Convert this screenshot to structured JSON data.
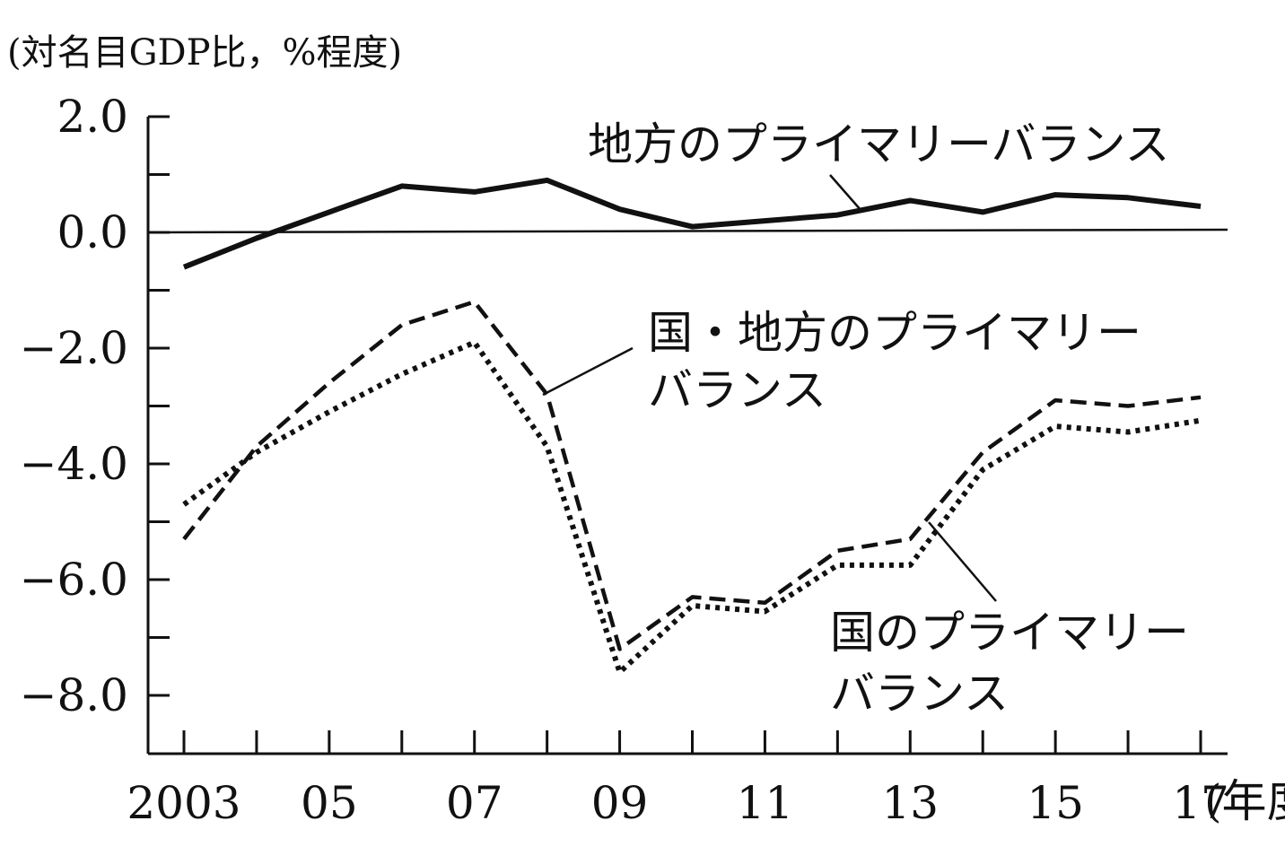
{
  "chart_data": {
    "type": "line",
    "ylabel": "(対名目GDP比，%程度)",
    "xlabel": "(年度)",
    "x": [
      2003,
      2004,
      2005,
      2006,
      2007,
      2008,
      2009,
      2010,
      2011,
      2012,
      2013,
      2014,
      2015,
      2016,
      2017
    ],
    "xticks": [
      2003,
      2004,
      2005,
      2006,
      2007,
      2008,
      2009,
      2010,
      2011,
      2012,
      2013,
      2014,
      2015,
      2016,
      2017
    ],
    "xtick_labels": [
      {
        "x": 2003,
        "label": "2003"
      },
      {
        "x": 2005,
        "label": "05"
      },
      {
        "x": 2007,
        "label": "07"
      },
      {
        "x": 2009,
        "label": "09"
      },
      {
        "x": 2011,
        "label": "11"
      },
      {
        "x": 2013,
        "label": "13"
      },
      {
        "x": 2015,
        "label": "15"
      },
      {
        "x": 2017,
        "label": "17"
      }
    ],
    "yticks": [
      2.0,
      1.0,
      0.0,
      -1.0,
      -2.0,
      -3.0,
      -4.0,
      -5.0,
      -6.0,
      -7.0,
      -8.0
    ],
    "ytick_labels": [
      {
        "y": 2.0,
        "label": "2.0"
      },
      {
        "y": 0.0,
        "label": "0.0"
      },
      {
        "y": -2.0,
        "label": "−2.0"
      },
      {
        "y": -4.0,
        "label": "−4.0"
      },
      {
        "y": -6.0,
        "label": "−6.0"
      },
      {
        "y": -8.0,
        "label": "−8.0"
      }
    ],
    "xlim": [
      2002.5,
      2017.3
    ],
    "ylim": [
      -9.0,
      2.0
    ],
    "grid": false,
    "legend": "inline labels",
    "series": [
      {
        "name": "地方のプライマリーバランス",
        "label_lines": [
          "地方のプライマリーバランス"
        ],
        "style": "solid",
        "values": [
          -0.6,
          -0.1,
          0.35,
          0.8,
          0.7,
          0.9,
          0.4,
          0.1,
          0.2,
          0.3,
          0.55,
          0.35,
          0.65,
          0.6,
          0.45
        ]
      },
      {
        "name": "国・地方のプライマリーバランス",
        "label_lines": [
          "国・地方のプライマリー",
          "バランス"
        ],
        "style": "dashed",
        "values": [
          -5.3,
          -3.7,
          -2.6,
          -1.6,
          -1.2,
          -2.8,
          -7.2,
          -6.3,
          -6.4,
          -5.5,
          -5.3,
          -3.8,
          -2.9,
          -3.0,
          -2.85
        ]
      },
      {
        "name": "国のプライマリーバランス",
        "label_lines": [
          "国のプライマリー",
          "バランス"
        ],
        "style": "dotted",
        "values": [
          -4.7,
          -3.8,
          -3.1,
          -2.45,
          -1.9,
          -3.7,
          -7.6,
          -6.45,
          -6.55,
          -5.75,
          -5.75,
          -4.1,
          -3.35,
          -3.45,
          -3.25
        ]
      }
    ]
  }
}
